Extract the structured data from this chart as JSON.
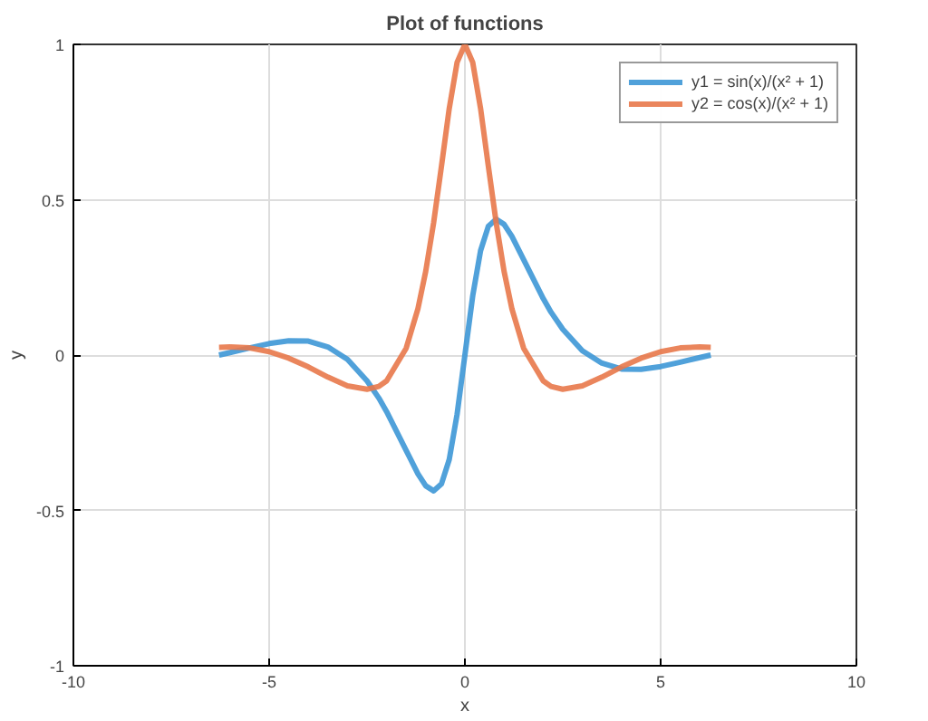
{
  "chart_data": {
    "type": "line",
    "title": "Plot of functions",
    "xlabel": "x",
    "ylabel": "y",
    "x": [
      -6.28,
      -6,
      -5.5,
      -5,
      -4.5,
      -4,
      -3.5,
      -3,
      -2.5,
      -2.2,
      -2,
      -1.5,
      -1.2,
      -1,
      -0.8,
      -0.6,
      -0.4,
      -0.2,
      0,
      0.2,
      0.4,
      0.6,
      0.8,
      1,
      1.2,
      1.5,
      2,
      2.2,
      2.5,
      3,
      3.5,
      4,
      4.5,
      5,
      5.5,
      6,
      6.28
    ],
    "series": [
      {
        "name": "y1 = sin(x)/(x² + 1)",
        "color": "#3d97d6",
        "values": [
          0,
          0.008,
          0.023,
          0.037,
          0.046,
          0.045,
          0.026,
          -0.014,
          -0.083,
          -0.138,
          -0.182,
          -0.307,
          -0.382,
          -0.421,
          -0.437,
          -0.415,
          -0.336,
          -0.191,
          0,
          0.191,
          0.336,
          0.415,
          0.437,
          0.421,
          0.382,
          0.307,
          0.182,
          0.138,
          0.083,
          0.014,
          -0.026,
          -0.045,
          -0.046,
          -0.037,
          -0.023,
          -0.008,
          0
        ]
      },
      {
        "name": "y2 = cos(x)/(x² + 1)",
        "color": "#e8784a",
        "values": [
          0.025,
          0.026,
          0.023,
          0.011,
          -0.01,
          -0.038,
          -0.071,
          -0.099,
          -0.11,
          -0.101,
          -0.083,
          0.022,
          0.149,
          0.27,
          0.425,
          0.607,
          0.794,
          0.942,
          1,
          0.942,
          0.794,
          0.607,
          0.425,
          0.27,
          0.149,
          0.022,
          -0.083,
          -0.101,
          -0.11,
          -0.099,
          -0.071,
          -0.038,
          -0.01,
          0.011,
          0.023,
          0.026,
          0.025
        ]
      }
    ],
    "xlim": [
      -10,
      10
    ],
    "ylim": [
      -1,
      1
    ],
    "xticks": [
      -10,
      -5,
      0,
      5,
      10
    ],
    "yticks": [
      -1,
      -0.5,
      0,
      0.5,
      1
    ],
    "grid": true,
    "legend": "top right",
    "line_style": "solid",
    "marker": "none"
  }
}
